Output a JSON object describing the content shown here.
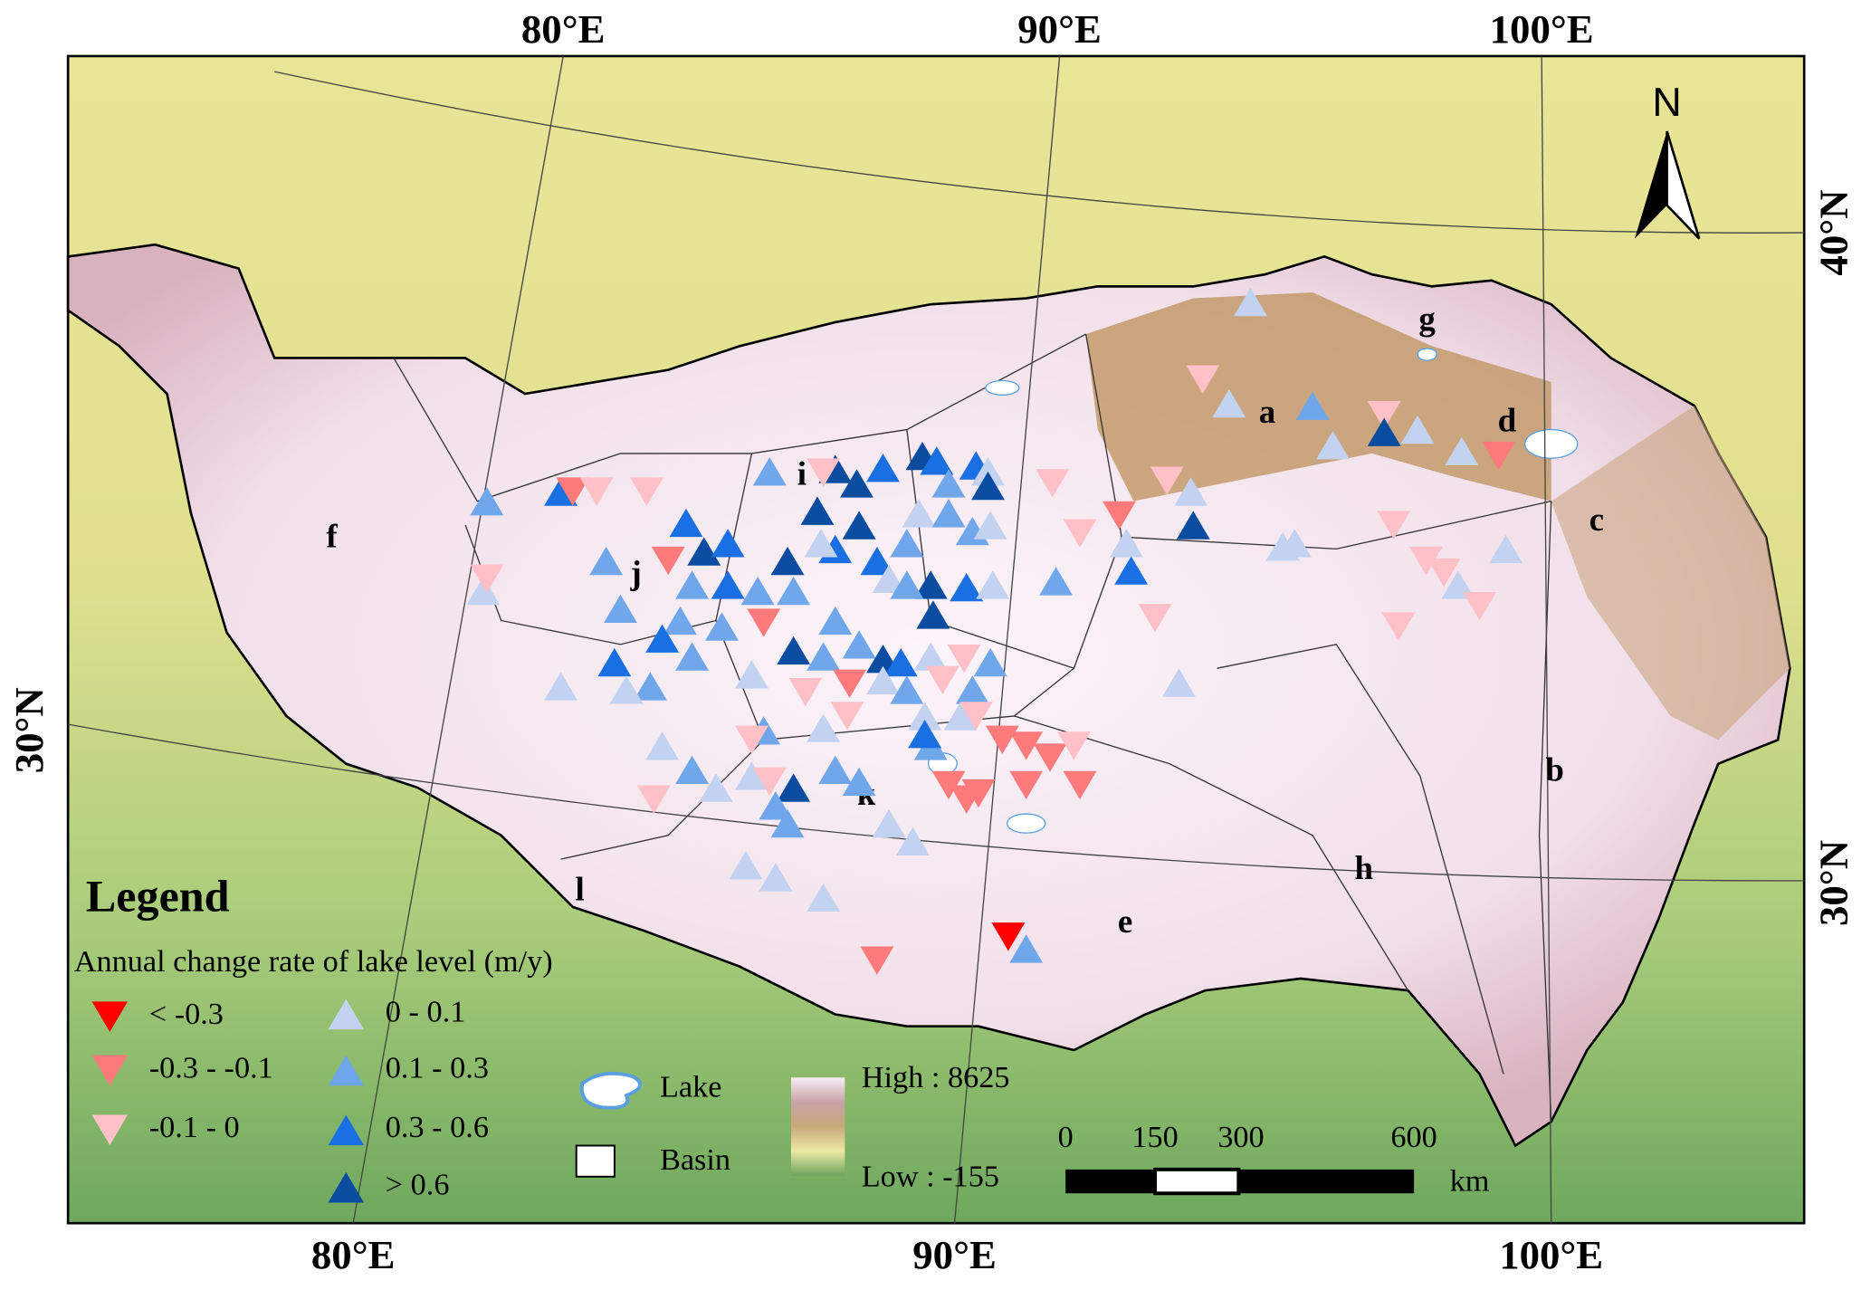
{
  "map": {
    "lon_labels_top": [
      "80°E",
      "90°E",
      "100°E"
    ],
    "lon_labels_bottom": [
      "80°E",
      "90°E",
      "100°E"
    ],
    "lat_labels_left": [
      "30°N"
    ],
    "lat_labels_right": [
      "40°N",
      "30°N"
    ],
    "basin_labels": [
      "a",
      "b",
      "c",
      "d",
      "e",
      "f",
      "g",
      "h",
      "i",
      "j",
      "k",
      "l"
    ],
    "north": "N",
    "legend": {
      "title": "Legend",
      "subtitle": "Annual change rate of lake level (m/y)",
      "items": [
        {
          "label": "< -0.3",
          "color": "#ff0000"
        },
        {
          "label": "-0.3 - -0.1",
          "color": "#ff7b7b"
        },
        {
          "label": "-0.1 - 0",
          "color": "#ffc0c8"
        },
        {
          "label": "0 - 0.1",
          "color": "#c3d2f0"
        },
        {
          "label": "0.1 - 0.3",
          "color": "#70a6ea"
        },
        {
          "label": "0.3 - 0.6",
          "color": "#1a6fe2"
        },
        {
          "label": "> 0.6",
          "color": "#0a4c9f"
        }
      ],
      "lake": "Lake",
      "basin": "Basin",
      "elevation_high": "High : 8625",
      "elevation_low": "Low : -155"
    },
    "scale_bar": {
      "ticks": [
        0,
        150,
        300,
        600
      ],
      "unit": "km"
    }
  }
}
